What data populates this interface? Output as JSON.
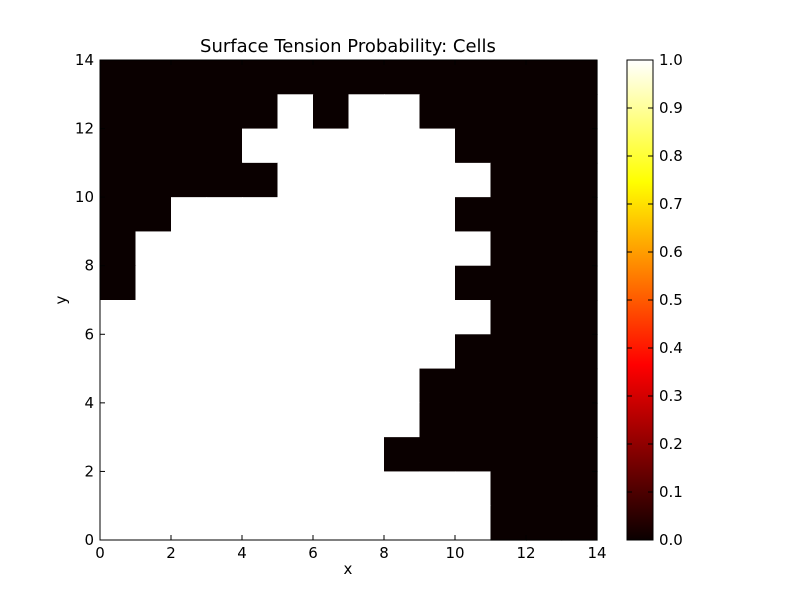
{
  "chart_data": {
    "type": "heatmap",
    "title": "Surface Tension Probability: Cells",
    "xlabel": "x",
    "ylabel": "y",
    "xlim": [
      0,
      14
    ],
    "ylim": [
      0,
      14
    ],
    "x_ticks": [
      "0",
      "2",
      "4",
      "6",
      "8",
      "10",
      "12",
      "14"
    ],
    "y_ticks": [
      "0",
      "2",
      "4",
      "6",
      "8",
      "10",
      "12",
      "14"
    ],
    "colormap": "hot",
    "colorbar": {
      "range": [
        0.0,
        1.0
      ],
      "ticks": [
        "0.0",
        "0.1",
        "0.2",
        "0.3",
        "0.4",
        "0.5",
        "0.6",
        "0.7",
        "0.8",
        "0.9",
        "1.0"
      ]
    },
    "grid": false,
    "cells_row_order": "top (y 13-14) to bottom (y 0-1); columns x 0-1 to 13-14",
    "cells": [
      [
        0,
        0,
        0,
        0,
        0,
        0,
        0,
        0,
        0,
        0,
        0,
        0,
        0,
        0
      ],
      [
        0,
        0,
        0,
        0,
        0,
        1,
        0,
        1,
        1,
        0,
        0,
        0,
        0,
        0
      ],
      [
        0,
        0,
        0,
        0,
        1,
        1,
        1,
        1,
        1,
        1,
        0,
        0,
        0,
        0
      ],
      [
        0,
        0,
        0,
        0,
        0,
        1,
        1,
        1,
        1,
        1,
        1,
        0,
        0,
        0
      ],
      [
        0,
        0,
        1,
        1,
        1,
        1,
        1,
        1,
        1,
        1,
        0,
        0,
        0,
        0
      ],
      [
        0,
        1,
        1,
        1,
        1,
        1,
        1,
        1,
        1,
        1,
        1,
        0,
        0,
        0
      ],
      [
        0,
        1,
        1,
        1,
        1,
        1,
        1,
        1,
        1,
        1,
        0,
        0,
        0,
        0
      ],
      [
        1,
        1,
        1,
        1,
        1,
        1,
        1,
        1,
        1,
        1,
        1,
        0,
        0,
        0
      ],
      [
        1,
        1,
        1,
        1,
        1,
        1,
        1,
        1,
        1,
        1,
        0,
        0,
        0,
        0
      ],
      [
        1,
        1,
        1,
        1,
        1,
        1,
        1,
        1,
        1,
        0,
        0,
        0,
        0,
        0
      ],
      [
        1,
        1,
        1,
        1,
        1,
        1,
        1,
        1,
        1,
        0,
        0,
        0,
        0,
        0
      ],
      [
        1,
        1,
        1,
        1,
        1,
        1,
        1,
        1,
        0,
        0,
        0,
        0,
        0,
        0
      ],
      [
        1,
        1,
        1,
        1,
        1,
        1,
        1,
        1,
        1,
        1,
        1,
        0,
        0,
        0
      ],
      [
        1,
        1,
        1,
        1,
        1,
        1,
        1,
        1,
        1,
        1,
        1,
        0,
        0,
        0
      ]
    ]
  }
}
